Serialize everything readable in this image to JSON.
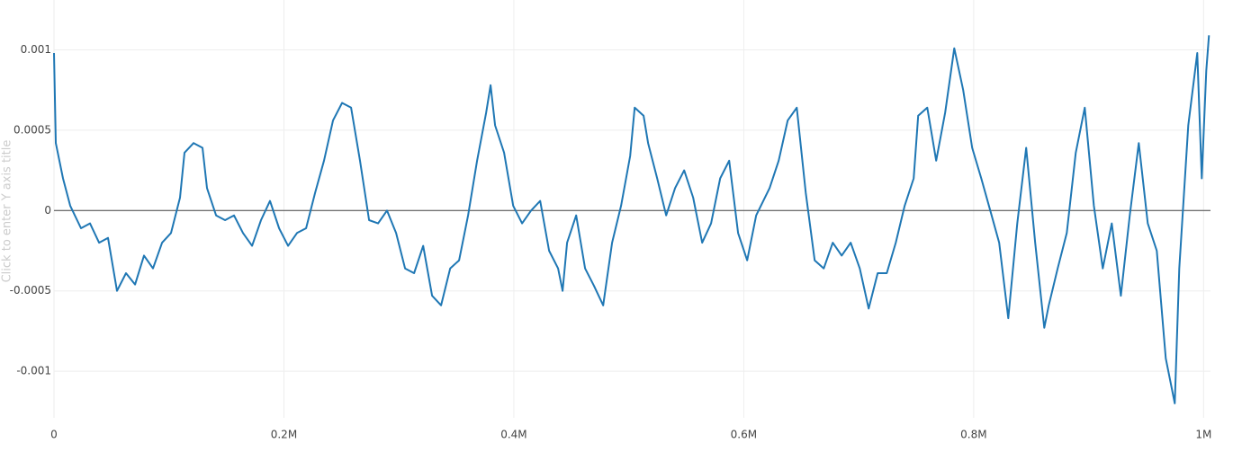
{
  "chart_data": {
    "type": "line",
    "y_axis_title": "Click to enter Y axis title",
    "xlim": [
      0,
      1006000
    ],
    "ylim": [
      -0.00129,
      0.00131
    ],
    "xticks": [
      0,
      {
        "value": 200000,
        "label": "0.2M"
      },
      {
        "value": 400000,
        "label": "0.4M"
      },
      {
        "value": 600000,
        "label": "0.6M"
      },
      {
        "value": 800000,
        "label": "0.8M"
      },
      {
        "value": 1000000,
        "label": "1M"
      }
    ],
    "yticks": [
      -0.001,
      -0.0005,
      0,
      0.0005,
      0.001
    ],
    "grid": true,
    "zeroline": true,
    "series": [
      {
        "color": "#1f77b4",
        "x": [
          0,
          1600,
          7800,
          14100,
          23500,
          31300,
          39200,
          47000,
          54800,
          62600,
          70500,
          78300,
          86100,
          94000,
          101800,
          109600,
          113500,
          121400,
          129200,
          133100,
          141000,
          148800,
          156600,
          164400,
          172300,
          180100,
          187900,
          195800,
          203600,
          211400,
          219300,
          227100,
          234900,
          242700,
          250600,
          258400,
          266200,
          274100,
          281900,
          289700,
          297600,
          305400,
          313200,
          321100,
          328900,
          336700,
          344600,
          352400,
          360200,
          368000,
          375900,
          379800,
          383700,
          391500,
          399400,
          407200,
          415000,
          422900,
          430700,
          438500,
          442400,
          446300,
          454200,
          462000,
          469800,
          477700,
          485500,
          493300,
          501200,
          505100,
          512900,
          516800,
          524700,
          532500,
          540300,
          548200,
          556000,
          563800,
          571600,
          579500,
          587300,
          595100,
          603000,
          610800,
          622500,
          630400,
          638200,
          646100,
          653900,
          661700,
          669600,
          677400,
          685200,
          693000,
          700900,
          708700,
          716500,
          724400,
          732200,
          740000,
          747800,
          751700,
          759600,
          767400,
          775200,
          783100,
          790900,
          798700,
          806600,
          814400,
          822200,
          830100,
          837900,
          845700,
          853500,
          861400,
          865300,
          873100,
          881000,
          888800,
          896600,
          904500,
          912300,
          920100,
          928000,
          935800,
          943600,
          951400,
          959300,
          967100,
          974900,
          978800,
          986700,
          994500,
          998400,
          1002300,
          1004700
        ],
        "values": [
          0.00098,
          0.00042,
          0.0002,
          3e-05,
          -0.00011,
          -8e-05,
          -0.0002,
          -0.00017,
          -0.0005,
          -0.00039,
          -0.00046,
          -0.00028,
          -0.00036,
          -0.0002,
          -0.00014,
          8e-05,
          0.00036,
          0.00042,
          0.00039,
          0.00014,
          -3e-05,
          -6e-05,
          -3e-05,
          -0.00014,
          -0.00022,
          -6e-05,
          6e-05,
          -0.00011,
          -0.00022,
          -0.00014,
          -0.00011,
          0.00011,
          0.00031,
          0.00056,
          0.00067,
          0.00064,
          0.00031,
          -6e-05,
          -8e-05,
          0,
          -0.00014,
          -0.00036,
          -0.00039,
          -0.00022,
          -0.00053,
          -0.00059,
          -0.00036,
          -0.00031,
          -3e-05,
          0.00031,
          0.00061,
          0.00078,
          0.00053,
          0.00036,
          3e-05,
          -8e-05,
          0,
          6e-05,
          -0.00025,
          -0.00036,
          -0.0005,
          -0.0002,
          -3e-05,
          -0.00036,
          -0.00047,
          -0.00059,
          -0.0002,
          3e-05,
          0.00034,
          0.00064,
          0.00059,
          0.00042,
          0.0002,
          -3e-05,
          0.00014,
          0.00025,
          8e-05,
          -0.0002,
          -8e-05,
          0.0002,
          0.00031,
          -0.00014,
          -0.00031,
          -3e-05,
          0.00014,
          0.00031,
          0.00056,
          0.00064,
          0.00011,
          -0.00031,
          -0.00036,
          -0.0002,
          -0.00028,
          -0.0002,
          -0.00036,
          -0.00061,
          -0.00039,
          -0.00039,
          -0.0002,
          3e-05,
          0.0002,
          0.00059,
          0.00064,
          0.00031,
          0.00061,
          0.00101,
          0.00075,
          0.00039,
          0.0002,
          0,
          -0.0002,
          -0.00067,
          -8e-05,
          0.00039,
          -0.0002,
          -0.00073,
          -0.00059,
          -0.00036,
          -0.00014,
          0.00036,
          0.00064,
          3e-05,
          -0.00036,
          -8e-05,
          -0.00053,
          -3e-05,
          0.00042,
          -8e-05,
          -0.00025,
          -0.00092,
          -0.0012,
          -0.00036,
          0.00053,
          0.00098,
          0.0002,
          0.00087,
          0.00109
        ]
      }
    ]
  }
}
